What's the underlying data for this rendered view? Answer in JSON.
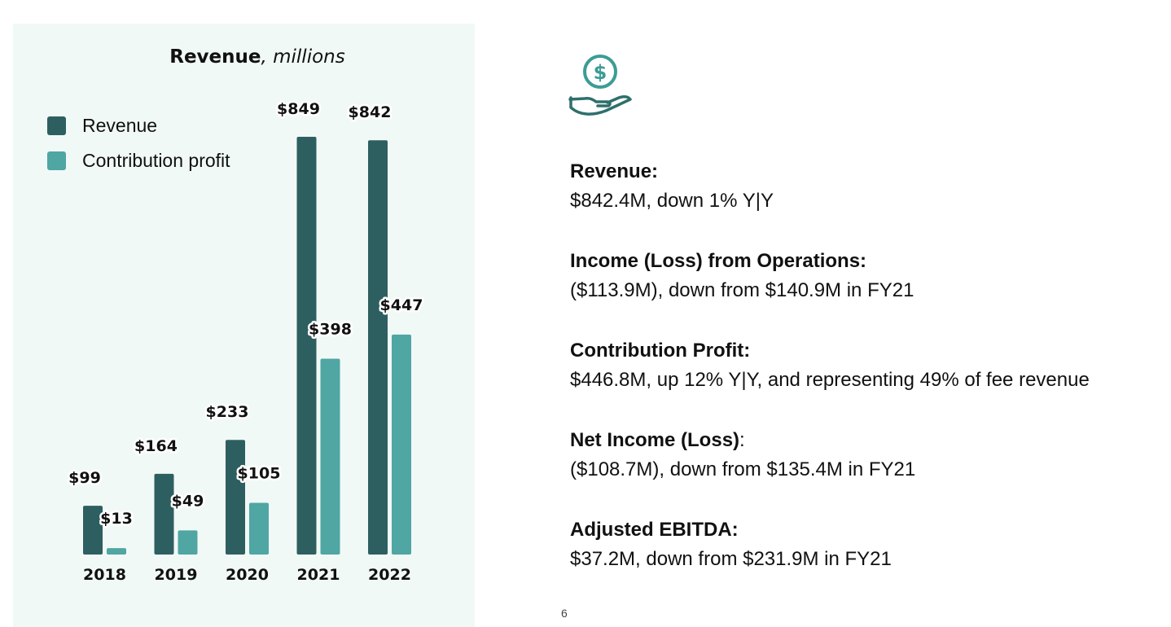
{
  "chart_data": {
    "type": "bar",
    "title_bold": "Revenue",
    "title_italic": ", millions",
    "categories": [
      "2018",
      "2019",
      "2020",
      "2021",
      "2022"
    ],
    "series": [
      {
        "name": "Revenue",
        "color": "#2e5f60",
        "values": [
          99,
          164,
          233,
          849,
          842
        ],
        "labels": [
          "$99",
          "$164",
          "$233",
          "$849",
          "$842"
        ]
      },
      {
        "name": "Contribution profit",
        "color": "#4fa6a3",
        "values": [
          13,
          49,
          105,
          398,
          447
        ],
        "labels": [
          "$13",
          "$49",
          "$105",
          "$398",
          "$447"
        ]
      }
    ],
    "ylim": [
      0,
      849
    ],
    "grid": false,
    "legend_position": "top-left"
  },
  "icon": {
    "name": "hand-dollar-icon",
    "color": "#3c9c96"
  },
  "kpis": [
    {
      "title": "Revenue:",
      "value": "$842.4M, down 1% Y|Y"
    },
    {
      "title": "Income (Loss) from Operations:",
      "value": "($113.9M), down from $140.9M in FY21"
    },
    {
      "title": "Contribution Profit:",
      "value": "$446.8M, up 12% Y|Y, and representing 49% of fee revenue"
    },
    {
      "title": "Net Income (Loss)",
      "title_suffix": ":",
      "value": "($108.7M), down from $135.4M in FY21"
    },
    {
      "title": "Adjusted EBITDA:",
      "value": "$37.2M, down from $231.9M in FY21"
    }
  ],
  "page_number": "6"
}
